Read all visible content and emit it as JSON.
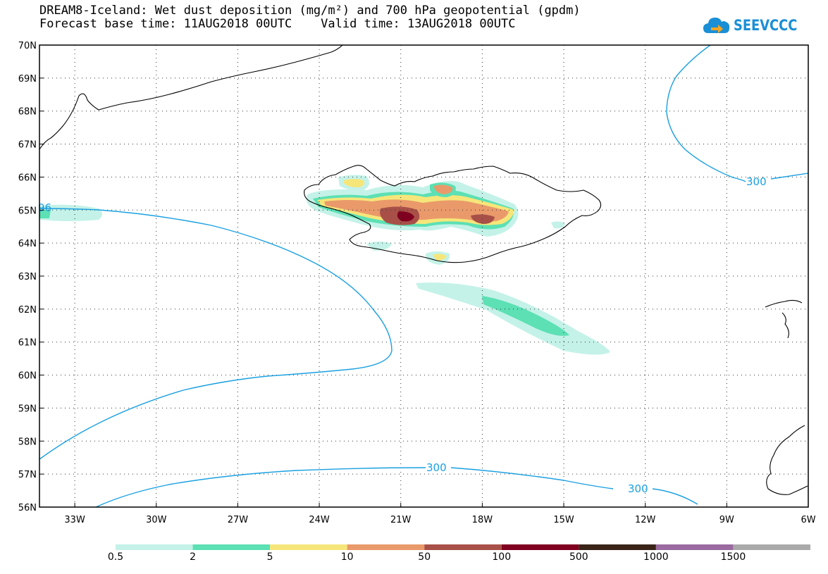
{
  "title": {
    "line1": "DREAM8-Iceland: Wet dust deposition (mg/m²) and 700 hPa geopotential (gpdm)",
    "line2": "Forecast base time: 11AUG2018 00UTC    Valid time: 13AUG2018 00UTC"
  },
  "logo": {
    "text": "SEEVCCC",
    "icon": "cloud-arrow-icon",
    "color": "#1a8fd6"
  },
  "map": {
    "lat_labels": [
      "70N",
      "69N",
      "68N",
      "67N",
      "66N",
      "65N",
      "64N",
      "63N",
      "62N",
      "61N",
      "60N",
      "59N",
      "58N",
      "57N",
      "56N"
    ],
    "lon_labels": [
      "33W",
      "30W",
      "27W",
      "24W",
      "21W",
      "18W",
      "15W",
      "12W",
      "9W",
      "6W"
    ],
    "contour_labels": [
      "300",
      "300",
      "300",
      "96"
    ],
    "contour_color": "#1aa0e0"
  },
  "legend": {
    "labels": [
      "0.5",
      "2",
      "5",
      "10",
      "50",
      "100",
      "500",
      "1000",
      "1500"
    ],
    "colors": [
      "#c4f2e8",
      "#5ce0b4",
      "#f6e67a",
      "#ea9a6a",
      "#a85048",
      "#800020",
      "#3a2418",
      "#9a6aa0",
      "#aaaaaa"
    ]
  }
}
